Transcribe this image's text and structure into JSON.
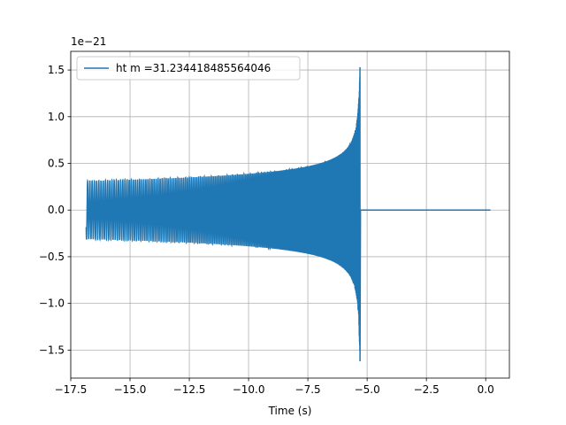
{
  "chart_data": {
    "type": "line",
    "xlabel": "Time (s)",
    "ylabel": "",
    "offset_text": "1e−21",
    "y_scale": 1e-21,
    "xlim": [
      -17.5,
      1.0
    ],
    "ylim": [
      -1.8,
      1.7
    ],
    "x_ticks": [
      -17.5,
      -15.0,
      -12.5,
      -10.0,
      -7.5,
      -5.0,
      -2.5,
      0.0
    ],
    "x_tick_labels": [
      "−17.5",
      "−15.0",
      "−12.5",
      "−10.0",
      "−7.5",
      "−5.0",
      "−2.5",
      "0.0"
    ],
    "y_ticks": [
      -1.5,
      -1.0,
      -0.5,
      0.0,
      0.5,
      1.0,
      1.5
    ],
    "y_tick_labels": [
      "−1.5",
      "−1.0",
      "−0.5",
      "0.0",
      "0.5",
      "1.0",
      "1.5"
    ],
    "grid": true,
    "legend_position": "top-left",
    "series": [
      {
        "name": "ht m =31.234418485564046",
        "color": "#1f77b4",
        "description_points": {
          "start_time": -16.85,
          "merger_time": -5.3,
          "end_time": 0.2,
          "start_amplitude": 0.31,
          "peak_amplitude_pos": 1.53,
          "peak_amplitude_neg": -1.62
        }
      }
    ]
  }
}
